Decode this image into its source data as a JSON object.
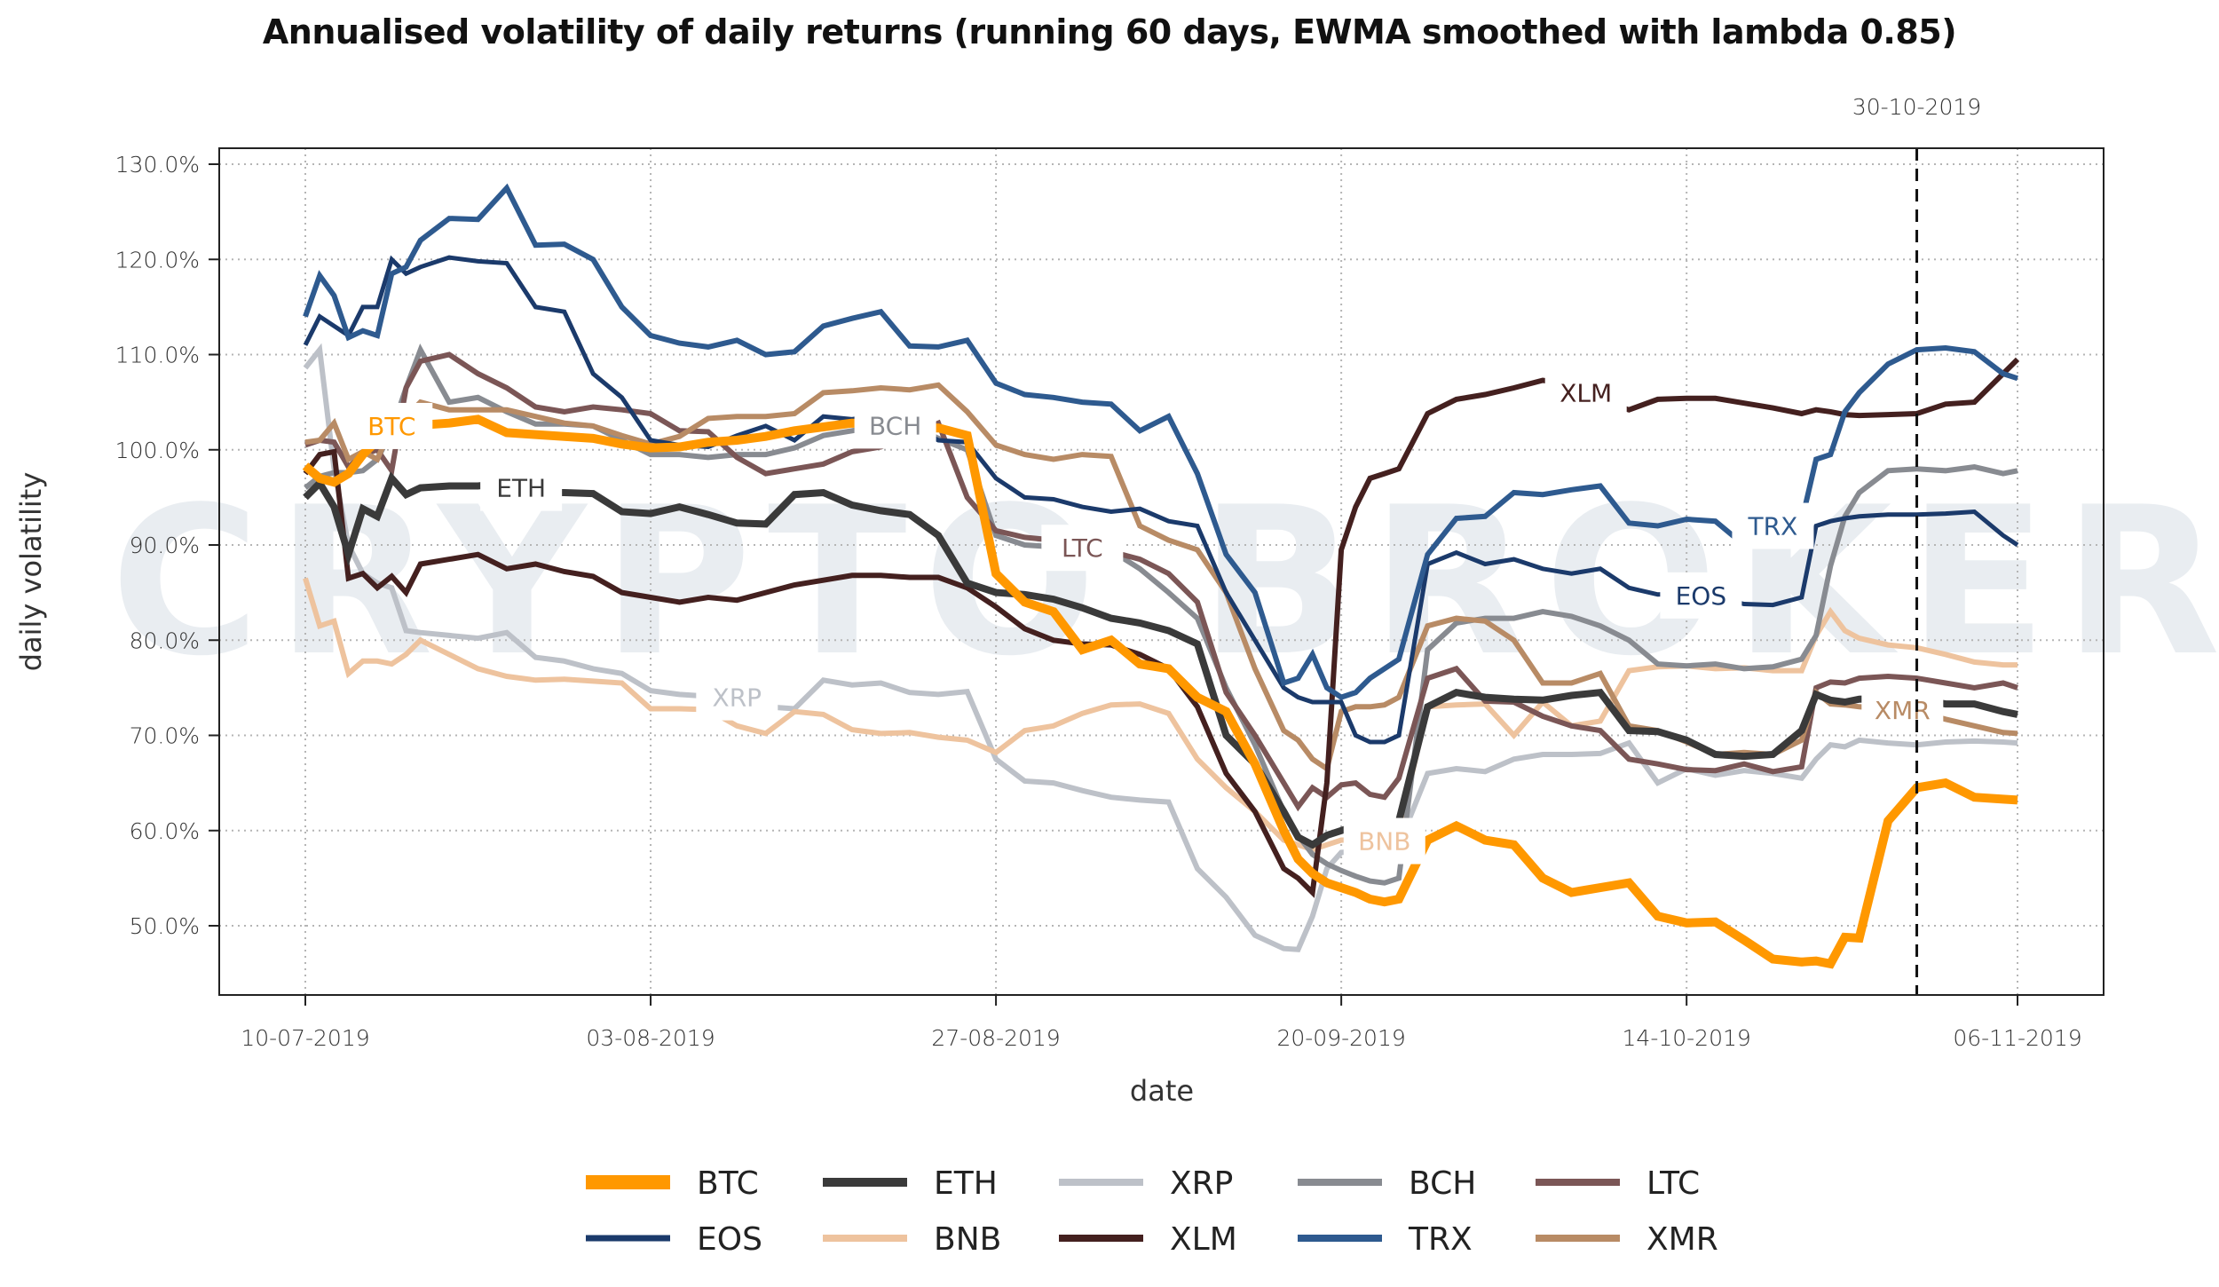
{
  "chart_data": {
    "type": "line",
    "title": "Annualised volatility of daily returns (running 60 days, EWMA smoothed with lambda 0.85)",
    "xlabel": "date",
    "ylabel": "daily volatility",
    "watermark": "CRYPTO BROKER",
    "x_start": "10-07-2019",
    "x_end": "06-11-2019",
    "x_ticks": [
      {
        "label": "10-07-2019",
        "day": 0
      },
      {
        "label": "03-08-2019",
        "day": 24
      },
      {
        "label": "27-08-2019",
        "day": 48
      },
      {
        "label": "20-09-2019",
        "day": 72
      },
      {
        "label": "14-10-2019",
        "day": 96
      },
      {
        "label": "06-11-2019",
        "day": 119
      }
    ],
    "y_ticks": [
      50,
      60,
      70,
      80,
      90,
      100,
      110,
      120,
      130
    ],
    "y_tick_format": "percent_1dp",
    "ylim": [
      42.5,
      131.5
    ],
    "xlim_days": [
      -6,
      125
    ],
    "grid": true,
    "vline": {
      "label": "30-10-2019",
      "day": 112
    },
    "legend_position": "bottom",
    "x_days": [
      0,
      1,
      2,
      3,
      4,
      5,
      6,
      7,
      8,
      10,
      12,
      14,
      16,
      18,
      20,
      22,
      24,
      26,
      28,
      30,
      32,
      34,
      36,
      38,
      40,
      42,
      44,
      46,
      48,
      50,
      52,
      54,
      56,
      58,
      60,
      62,
      64,
      66,
      68,
      69,
      70,
      71,
      72,
      73,
      74,
      75,
      76,
      78,
      80,
      82,
      84,
      86,
      88,
      90,
      92,
      94,
      96,
      98,
      100,
      102,
      104,
      105,
      106,
      107,
      108,
      110,
      112,
      114,
      116,
      118,
      119
    ],
    "series": [
      {
        "name": "BTC",
        "color": "#ff9800",
        "width": 10,
        "label_day": 6,
        "values": [
          98.3,
          97.0,
          96.6,
          97.5,
          99.5,
          101,
          102.5,
          103,
          102.6,
          102.8,
          103.2,
          101.8,
          101.6,
          101.4,
          101.2,
          100.6,
          100.2,
          100.3,
          100.8,
          101,
          101.4,
          102,
          102.4,
          102.8,
          102.6,
          102.2,
          102.3,
          101.5,
          87,
          84,
          83,
          79,
          80,
          77.5,
          77,
          74,
          72.5,
          67,
          60,
          57,
          55.5,
          54.5,
          54,
          53.5,
          52.8,
          52.5,
          52.8,
          59,
          60.5,
          59,
          58.5,
          55,
          53.5,
          54,
          54.5,
          51,
          50.3,
          50.4,
          48.5,
          46.5,
          46.2,
          46.3,
          46,
          48.8,
          48.7,
          61,
          64.5,
          65,
          63.5,
          63.3,
          63.2
        ]
      },
      {
        "name": "ETH",
        "color": "#3a3a3a",
        "width": 8,
        "label_day": 15,
        "values": [
          95,
          96.5,
          94,
          89,
          93.8,
          93,
          97,
          95.3,
          96,
          96.2,
          96.2,
          96.5,
          95.5,
          95.5,
          95.4,
          93.5,
          93.3,
          94,
          93.2,
          92.3,
          92.2,
          95.3,
          95.5,
          94.2,
          93.6,
          93.2,
          91,
          86,
          85,
          84.8,
          84.3,
          83.4,
          82.3,
          81.8,
          81,
          79.6,
          70,
          67,
          62,
          59.3,
          58.5,
          59.5,
          60,
          60.5,
          60.5,
          60.3,
          61,
          73,
          74.5,
          74,
          73.8,
          73.7,
          74.2,
          74.5,
          70.5,
          70.4,
          69.5,
          68,
          67.8,
          68,
          70.5,
          74.3,
          73.7,
          73.5,
          73.8,
          73.9,
          73.8,
          73.3,
          73.3,
          72.5,
          72.2
        ]
      },
      {
        "name": "XRP",
        "color": "#bdc1c8",
        "width": 6,
        "label_day": 30,
        "values": [
          108.6,
          110.5,
          98,
          90,
          87,
          86,
          85.5,
          81,
          80.8,
          80.5,
          80.2,
          80.8,
          78.2,
          77.8,
          77,
          76.5,
          74.7,
          74.3,
          74.1,
          74,
          73,
          72.8,
          75.8,
          75.3,
          75.5,
          74.5,
          74.3,
          74.6,
          67.5,
          65.2,
          65,
          64.2,
          63.5,
          63.2,
          63,
          56,
          53,
          49,
          47.6,
          47.5,
          51,
          56,
          57.7,
          57.8,
          58,
          58.2,
          58.5,
          66,
          66.5,
          66.2,
          67.5,
          68,
          68,
          68.1,
          69.2,
          65,
          66.5,
          65.8,
          66.3,
          66,
          65.5,
          67.5,
          69,
          68.8,
          69.5,
          69.2,
          69,
          69.3,
          69.4,
          69.3,
          69.2
        ]
      },
      {
        "name": "BCH",
        "color": "#888b91",
        "width": 6,
        "label_day": 41,
        "values": [
          96,
          97.2,
          97.6,
          97.6,
          97.8,
          99,
          102,
          106.5,
          110.5,
          105,
          105.5,
          104,
          102.7,
          102.7,
          102.5,
          101,
          99.5,
          99.5,
          99.2,
          99.5,
          99.5,
          100.2,
          101.5,
          102,
          102.5,
          102.6,
          101.2,
          100,
          91,
          90,
          89.8,
          89.5,
          89.4,
          87.5,
          85,
          82.3,
          75,
          69,
          62,
          59.5,
          57.5,
          56.5,
          55.8,
          55.2,
          54.7,
          54.5,
          55,
          79,
          81.8,
          82.3,
          82.3,
          83,
          82.5,
          81.5,
          80,
          77.5,
          77.3,
          77.5,
          77,
          77.2,
          78,
          80.5,
          87.8,
          93,
          95.5,
          97.8,
          98,
          97.8,
          98.2,
          97.5,
          97.8
        ]
      },
      {
        "name": "LTC",
        "color": "#7b5656",
        "width": 6,
        "label_day": 54,
        "values": [
          100.5,
          101,
          100.8,
          98.2,
          99.5,
          100,
          97.8,
          106.5,
          109.3,
          110,
          108,
          106.5,
          104.5,
          104,
          104.5,
          104.2,
          103.8,
          102,
          101.9,
          99.2,
          97.5,
          98,
          98.5,
          99.8,
          100.3,
          101.5,
          102.8,
          95,
          91.5,
          90.8,
          90.5,
          89.7,
          89.3,
          88.5,
          87,
          84,
          74.5,
          70,
          65,
          62.5,
          64.5,
          63.5,
          64.8,
          65,
          63.8,
          63.5,
          65.5,
          76,
          77,
          73.6,
          73.5,
          72,
          71,
          70.5,
          67.5,
          67,
          66.4,
          66.3,
          67,
          66.2,
          66.7,
          75,
          75.6,
          75.5,
          76,
          76.2,
          76,
          75.5,
          75,
          75.5,
          75
        ]
      },
      {
        "name": "EOS",
        "color": "#1b3a6b",
        "width": 5,
        "label_day": 97,
        "values": [
          111,
          114,
          113,
          112,
          115,
          115,
          120,
          118.5,
          119.2,
          120.2,
          119.8,
          119.6,
          115,
          114.5,
          108,
          105.5,
          101,
          100.5,
          100.3,
          101.5,
          102.5,
          101,
          103.5,
          103.2,
          103.7,
          102.5,
          101,
          100.8,
          97,
          95,
          94.8,
          94,
          93.5,
          93.8,
          92.5,
          92,
          85,
          80,
          75,
          74,
          73.5,
          73.5,
          73.5,
          70,
          69.3,
          69.3,
          70,
          88,
          89.2,
          88,
          88.5,
          87.5,
          87,
          87.5,
          85.5,
          84.8,
          84.9,
          84.5,
          83.8,
          83.7,
          84.5,
          92,
          92.5,
          92.8,
          93,
          93.2,
          93.2,
          93.3,
          93.5,
          91,
          90
        ]
      },
      {
        "name": "BNB",
        "color": "#eec39e",
        "width": 6,
        "label_day": 75,
        "values": [
          86.5,
          81.5,
          82,
          76.5,
          77.8,
          77.8,
          77.5,
          78.5,
          80,
          78.5,
          77,
          76.2,
          75.8,
          75.9,
          75.7,
          75.5,
          72.8,
          72.8,
          72.7,
          71,
          70.2,
          72.5,
          72.2,
          70.6,
          70.2,
          70.3,
          69.8,
          69.5,
          68.2,
          70.5,
          71,
          72.3,
          73.2,
          73.3,
          72.3,
          67.5,
          64.5,
          62,
          59,
          58.5,
          58,
          58.5,
          59,
          59,
          59,
          58.9,
          60,
          73,
          73.2,
          73.3,
          70,
          73.5,
          71,
          71.5,
          76.8,
          77.2,
          77.3,
          77,
          77.1,
          76.8,
          76.8,
          80.5,
          83,
          81,
          80.2,
          79.5,
          79.2,
          78.5,
          77.7,
          77.4,
          77.4
        ]
      },
      {
        "name": "XLM",
        "color": "#44201f",
        "width": 6,
        "label_day": 89,
        "values": [
          97.5,
          99.5,
          99.8,
          86.5,
          87,
          85.5,
          86.7,
          85,
          88,
          88.5,
          89,
          87.5,
          88,
          87.2,
          86.7,
          85,
          84.5,
          84,
          84.5,
          84.2,
          85,
          85.8,
          86.3,
          86.8,
          86.8,
          86.6,
          86.6,
          85.5,
          83.5,
          81.2,
          80,
          79.6,
          79.5,
          78.5,
          77,
          73,
          66,
          62,
          56,
          55,
          53.5,
          65,
          89.5,
          94,
          97,
          97.5,
          98,
          103.8,
          105.3,
          105.8,
          106.5,
          107.3,
          106.9,
          105.1,
          104.2,
          105.3,
          105.4,
          105.4,
          104.9,
          104.4,
          103.8,
          104.2,
          104,
          103.7,
          103.6,
          103.7,
          103.8,
          104.8,
          105,
          108,
          109.5
        ]
      },
      {
        "name": "TRX",
        "color": "#2e5a8f",
        "width": 6,
        "label_day": 102,
        "values": [
          114,
          118.3,
          116.2,
          111.8,
          112.5,
          112,
          118.5,
          119.2,
          122,
          124.3,
          124.2,
          127.5,
          121.5,
          121.6,
          120,
          115,
          112,
          111.2,
          110.8,
          111.5,
          110,
          110.3,
          113,
          113.8,
          114.5,
          110.9,
          110.8,
          111.5,
          107,
          105.8,
          105.5,
          105,
          104.8,
          102,
          103.5,
          97.5,
          89,
          85,
          75.5,
          76,
          78.5,
          75,
          74,
          74.5,
          76,
          77,
          78,
          89,
          92.8,
          93,
          95.5,
          95.3,
          95.8,
          96.2,
          92.3,
          92,
          92.7,
          92.5,
          90,
          92,
          92.5,
          99,
          99.5,
          104,
          106,
          109,
          110.5,
          110.7,
          110.3,
          108,
          107.5
        ]
      },
      {
        "name": "XMR",
        "color": "#b88b65",
        "width": 6,
        "label_day": 111,
        "values": [
          100.8,
          101,
          102.8,
          99,
          99.8,
          99,
          102.5,
          103.5,
          105,
          104.2,
          104.2,
          104.2,
          103.5,
          102.8,
          102.5,
          101.5,
          100.6,
          101.4,
          103.3,
          103.5,
          103.5,
          103.8,
          106,
          106.2,
          106.5,
          106.3,
          106.8,
          104,
          100.5,
          99.5,
          99,
          99.5,
          99.3,
          92,
          90.5,
          89.5,
          85,
          77,
          70.5,
          69.5,
          67.5,
          66.5,
          72.5,
          73,
          73,
          73.2,
          74,
          81.5,
          82.3,
          82,
          80,
          75.5,
          75.5,
          76.5,
          71,
          70.5,
          69.3,
          68,
          68.2,
          68,
          69.5,
          74.5,
          73.3,
          73.2,
          73,
          72.8,
          72.5,
          71.7,
          71,
          70.3,
          70.2
        ]
      }
    ]
  }
}
